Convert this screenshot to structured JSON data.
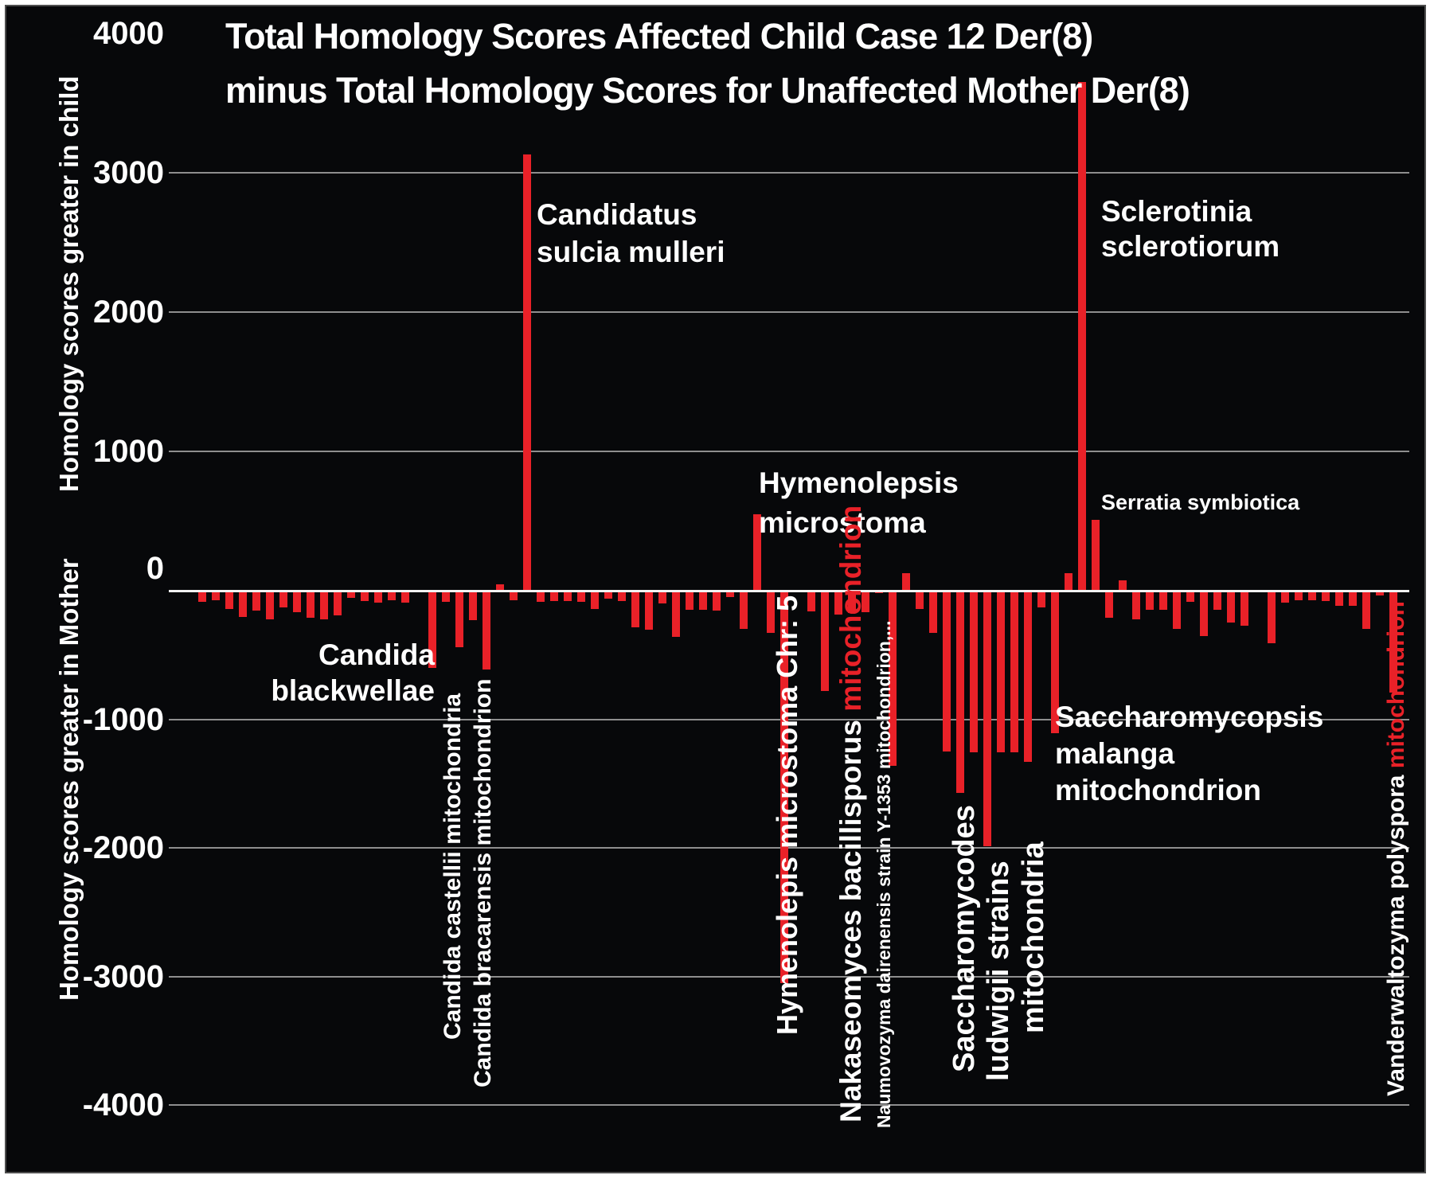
{
  "title": {
    "line1": "Total Homology Scores Affected Child Case 12 Der(8)",
    "line2": "minus Total Homology Scores for Unaffected Mother Der(8)"
  },
  "y_axis": {
    "label_top": "Homology scores greater in child",
    "label_bottom": "Homology scores greater in Mother",
    "ticks": [
      "4000",
      "3000",
      "2000",
      "1000",
      "0",
      "-1000",
      "-2000",
      "-3000",
      "-4000"
    ]
  },
  "colors": {
    "background": "#07080a",
    "bar": "#e92128",
    "grid": "#8e8e8e",
    "axis_line": "#f2f2f2",
    "text": "#ffffff",
    "red_label_word": "#e92128"
  },
  "annotations": {
    "blackwellae": {
      "line1": "Candida",
      "line2": "blackwellae"
    },
    "castellii": {
      "text": "Candida castellii mitochondria"
    },
    "bracarensis": {
      "text": "Candida bracarensis mitochondrion"
    },
    "sulcia": {
      "line1": "Candidatus",
      "line2": "sulcia mulleri"
    },
    "hymenolepsis": {
      "line1": "Hymenolepsis",
      "line2": "microstoma"
    },
    "chr5": {
      "text": "Hymenolepis microstoma Chr: 5"
    },
    "nakaseomyces": {
      "white": "Nakaseomyces bacillisporus ",
      "red": "mitochondrion"
    },
    "naumovozyma": {
      "text": "Naumovozyma dairenensis strain Y-1353 mitochondrion,..."
    },
    "saccharomycodes": {
      "col1": "Saccharomycodes",
      "col2": "ludwigii strains",
      "col3": "mitochondria"
    },
    "saccharomycopsis": {
      "line1": "Saccharomycopsis",
      "line2": "malanga",
      "line3": "mitochondrion"
    },
    "sclerotinia": {
      "line1": "Sclerotinia",
      "line2": "sclerotiorum"
    },
    "serratia": {
      "text": "Serratia symbiotica"
    },
    "vanderwaltozyma": {
      "white": "Vanderwaltozyma polyspora ",
      "red": "mitochondrion"
    }
  },
  "chart_data": {
    "type": "bar",
    "title": "Total Homology Scores Affected Child Case 12 Der(8) minus Total Homology Scores for Unaffected Mother Der(8)",
    "xlabel": "",
    "ylabel": "Homology scores greater in child / Homology scores greater in Mother",
    "ylim": [
      -4000,
      4000
    ],
    "gridline_interval": 1000,
    "grid": true,
    "legend_position": "none",
    "values": [
      -85,
      -75,
      -140,
      -205,
      -152,
      -220,
      -130,
      -166,
      -209,
      -223,
      -190,
      -53,
      -83,
      -90,
      -73,
      -90,
      -15,
      -600,
      -87,
      -440,
      -230,
      -610,
      45,
      -73,
      3130,
      -87,
      -83,
      -83,
      -85,
      -142,
      -63,
      -83,
      -286,
      -303,
      -97,
      -357,
      -146,
      -146,
      -156,
      -50,
      -300,
      550,
      -330,
      -3050,
      -15,
      -161,
      -780,
      -185,
      -175,
      -165,
      -20,
      -1360,
      125,
      -145,
      -330,
      -1250,
      -1570,
      -1260,
      -1990,
      -1260,
      -1260,
      -1330,
      -130,
      -1110,
      125,
      3650,
      510,
      -210,
      75,
      -220,
      -150,
      -150,
      -300,
      -85,
      -350,
      -150,
      -250,
      -275,
      -15,
      -410,
      -90,
      -75,
      -75,
      -80,
      -120,
      -120,
      -295,
      -35,
      -790
    ],
    "annotations": [
      {
        "label": "Candida blackwellae",
        "bar_index": 17,
        "value": -600
      },
      {
        "label": "Candida castellii mitochondria",
        "bar_index": 19,
        "value": -440
      },
      {
        "label": "Candida bracarensis mitochondrion",
        "bar_index": 21,
        "value": -610
      },
      {
        "label": "Candidatus sulcia mulleri",
        "bar_index": 24,
        "value": 3130
      },
      {
        "label": "Hymenolepsis microstoma",
        "bar_index": 41,
        "value": 550
      },
      {
        "label": "Hymenolepis microstoma Chr: 5",
        "bar_index": 43,
        "value": -3050
      },
      {
        "label": "Nakaseomyces bacillisporus mitochondrion",
        "bar_index": 46,
        "value": -780
      },
      {
        "label": "Naumovozyma dairenensis strain Y-1353 mitochondrion,...",
        "bar_index": 51,
        "value": -1360
      },
      {
        "label": "Saccharomycodes ludwigii strains mitochondria",
        "bar_index": 58,
        "value": -1990
      },
      {
        "label": "Saccharomycopsis malanga mitochondrion",
        "bar_index": 63,
        "value": -1110
      },
      {
        "label": "Sclerotinia sclerotiorum",
        "bar_index": 65,
        "value": 3650
      },
      {
        "label": "Serratia symbiotica",
        "bar_index": 66,
        "value": 510
      },
      {
        "label": "Vanderwaltozyma polyspora mitochondrion",
        "bar_index": 88,
        "value": -790
      }
    ]
  }
}
